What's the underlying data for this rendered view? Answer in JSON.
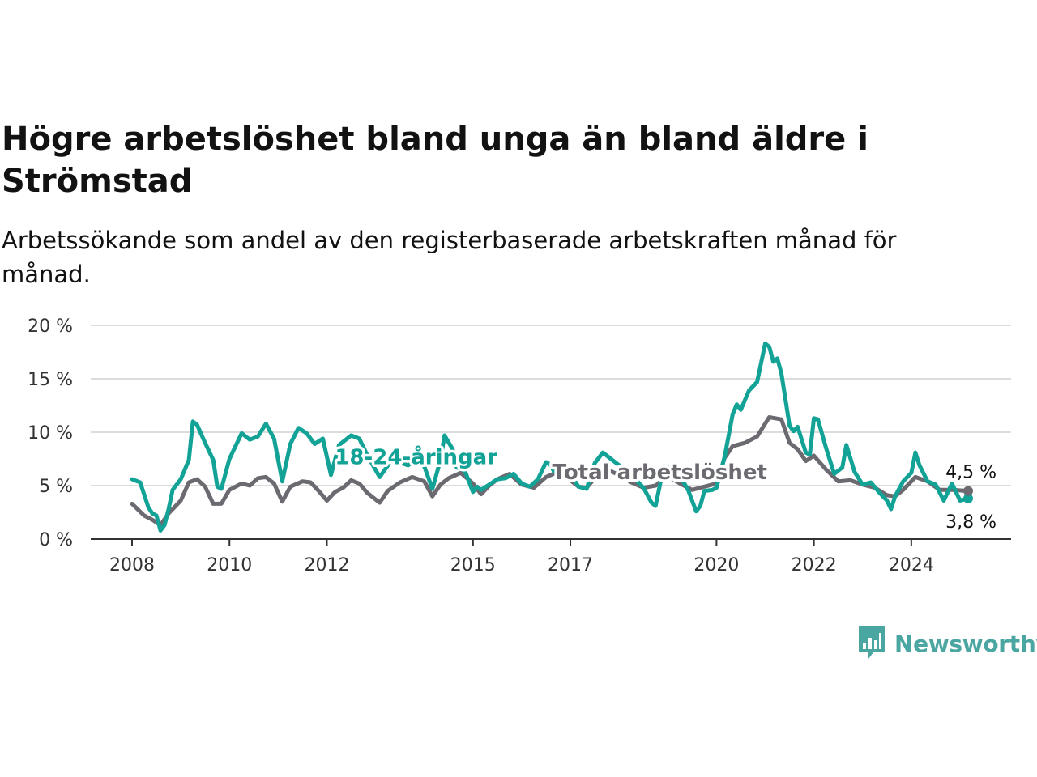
{
  "title": "Högre arbetslöshet bland unga än bland äldre i Strömstad",
  "subtitle": "Arbetssökande som andel av den registerbaserade arbetskraften månad för månad.",
  "brand": {
    "name": "Newsworthy",
    "color": "#4aa6a0"
  },
  "chart_data": {
    "type": "line",
    "title": "Högre arbetslöshet bland unga än bland äldre i Strömstad",
    "subtitle": "Arbetssökande som andel av den registerbaserade arbetskraften månad för månad.",
    "xlabel": "",
    "ylabel": "",
    "ylim": [
      0,
      20
    ],
    "xlim": [
      "2008-01",
      "2025-04"
    ],
    "grid": true,
    "y_ticks": [
      0,
      5,
      10,
      15,
      20
    ],
    "y_tick_labels": [
      "0 %",
      "5 %",
      "10 %",
      "15 %",
      "20 %"
    ],
    "x_ticks": [
      "2008-01",
      "2010-01",
      "2012-01",
      "2015-01",
      "2017-01",
      "2020-01",
      "2022-01",
      "2024-01"
    ],
    "x_tick_labels": [
      "2008",
      "2010",
      "2012",
      "2015",
      "2017",
      "2020",
      "2022",
      "2024"
    ],
    "series": [
      {
        "name": "18-24-åringar",
        "color": "#12a296",
        "label_anchor": [
          "2013-11",
          7.7
        ],
        "end_label": "3,8 %",
        "points": [
          [
            "2008-01",
            5.6
          ],
          [
            "2008-03",
            5.3
          ],
          [
            "2008-05",
            3.0
          ],
          [
            "2008-06",
            2.4
          ],
          [
            "2008-07",
            2.2
          ],
          [
            "2008-08",
            0.8
          ],
          [
            "2008-09",
            1.3
          ],
          [
            "2008-10",
            2.8
          ],
          [
            "2008-11",
            4.6
          ],
          [
            "2009-01",
            5.6
          ],
          [
            "2009-03",
            7.4
          ],
          [
            "2009-04",
            11.0
          ],
          [
            "2009-05",
            10.7
          ],
          [
            "2009-07",
            9.0
          ],
          [
            "2009-09",
            7.4
          ],
          [
            "2009-10",
            4.9
          ],
          [
            "2009-11",
            4.7
          ],
          [
            "2010-01",
            7.5
          ],
          [
            "2010-04",
            9.9
          ],
          [
            "2010-06",
            9.3
          ],
          [
            "2010-08",
            9.6
          ],
          [
            "2010-10",
            10.8
          ],
          [
            "2010-12",
            9.4
          ],
          [
            "2011-02",
            5.4
          ],
          [
            "2011-04",
            8.9
          ],
          [
            "2011-06",
            10.4
          ],
          [
            "2011-08",
            9.9
          ],
          [
            "2011-10",
            8.9
          ],
          [
            "2011-12",
            9.4
          ],
          [
            "2012-02",
            6.0
          ],
          [
            "2012-04",
            8.8
          ],
          [
            "2012-07",
            9.7
          ],
          [
            "2012-09",
            9.4
          ],
          [
            "2012-11",
            7.8
          ],
          [
            "2013-02",
            5.8
          ],
          [
            "2013-05",
            7.4
          ],
          [
            "2013-09",
            6.9
          ],
          [
            "2013-12",
            7.8
          ],
          [
            "2014-01",
            6.8
          ],
          [
            "2014-03",
            4.7
          ],
          [
            "2014-05",
            7.4
          ],
          [
            "2014-06",
            9.7
          ],
          [
            "2014-08",
            8.4
          ],
          [
            "2014-09",
            6.7
          ],
          [
            "2014-11",
            6.4
          ],
          [
            "2015-01",
            4.4
          ],
          [
            "2015-02",
            4.9
          ],
          [
            "2015-03",
            4.6
          ],
          [
            "2015-05",
            5.1
          ],
          [
            "2015-07",
            5.6
          ],
          [
            "2015-09",
            5.7
          ],
          [
            "2015-11",
            6.1
          ],
          [
            "2016-01",
            5.2
          ],
          [
            "2016-03",
            4.9
          ],
          [
            "2016-05",
            5.6
          ],
          [
            "2016-07",
            7.2
          ],
          [
            "2016-08",
            7.0
          ],
          [
            "2016-09",
            6.3
          ],
          [
            "2016-11",
            6.3
          ],
          [
            "2017-01",
            6.1
          ],
          [
            "2017-03",
            4.9
          ],
          [
            "2017-05",
            4.7
          ],
          [
            "2017-07",
            7.1
          ],
          [
            "2017-09",
            8.1
          ],
          [
            "2017-11",
            7.5
          ],
          [
            "2018-01",
            6.9
          ],
          [
            "2018-03",
            6.2
          ],
          [
            "2018-05",
            5.6
          ],
          [
            "2018-07",
            4.8
          ],
          [
            "2018-09",
            3.4
          ],
          [
            "2018-10",
            3.1
          ],
          [
            "2018-12",
            6.8
          ],
          [
            "2019-02",
            6.6
          ],
          [
            "2019-04",
            5.9
          ],
          [
            "2019-06",
            4.6
          ],
          [
            "2019-08",
            2.6
          ],
          [
            "2019-09",
            3.1
          ],
          [
            "2019-10",
            4.5
          ],
          [
            "2019-12",
            4.6
          ],
          [
            "2020-01",
            4.8
          ],
          [
            "2020-03",
            7.7
          ],
          [
            "2020-05",
            11.7
          ],
          [
            "2020-06",
            12.6
          ],
          [
            "2020-07",
            12.1
          ],
          [
            "2020-09",
            13.9
          ],
          [
            "2020-11",
            14.7
          ],
          [
            "2021-01",
            18.3
          ],
          [
            "2021-02",
            18.0
          ],
          [
            "2021-03",
            16.6
          ],
          [
            "2021-04",
            16.9
          ],
          [
            "2021-05",
            15.5
          ],
          [
            "2021-07",
            10.6
          ],
          [
            "2021-08",
            10.1
          ],
          [
            "2021-09",
            10.5
          ],
          [
            "2021-11",
            8.1
          ],
          [
            "2021-12",
            7.9
          ],
          [
            "2022-01",
            11.3
          ],
          [
            "2022-02",
            11.2
          ],
          [
            "2022-04",
            8.5
          ],
          [
            "2022-06",
            6.1
          ],
          [
            "2022-08",
            6.7
          ],
          [
            "2022-09",
            8.8
          ],
          [
            "2022-11",
            6.3
          ],
          [
            "2023-01",
            5.1
          ],
          [
            "2023-03",
            5.3
          ],
          [
            "2023-05",
            4.4
          ],
          [
            "2023-07",
            3.6
          ],
          [
            "2023-08",
            2.8
          ],
          [
            "2023-09",
            4.0
          ],
          [
            "2023-11",
            5.4
          ],
          [
            "2024-01",
            6.2
          ],
          [
            "2024-02",
            8.1
          ],
          [
            "2024-03",
            6.9
          ],
          [
            "2024-05",
            5.4
          ],
          [
            "2024-07",
            5.1
          ],
          [
            "2024-09",
            3.6
          ],
          [
            "2024-11",
            5.2
          ],
          [
            "2025-01",
            3.6
          ],
          [
            "2025-03",
            3.8
          ]
        ]
      },
      {
        "name": "Total arbetslöshet",
        "color": "#6c6a70",
        "label_anchor": [
          "2018-11",
          6.3
        ],
        "end_label": "4,5 %",
        "points": [
          [
            "2008-01",
            3.3
          ],
          [
            "2008-04",
            2.2
          ],
          [
            "2008-06",
            1.8
          ],
          [
            "2008-08",
            1.3
          ],
          [
            "2008-10",
            2.4
          ],
          [
            "2009-01",
            3.6
          ],
          [
            "2009-03",
            5.3
          ],
          [
            "2009-05",
            5.6
          ],
          [
            "2009-07",
            4.9
          ],
          [
            "2009-09",
            3.3
          ],
          [
            "2009-11",
            3.3
          ],
          [
            "2010-01",
            4.6
          ],
          [
            "2010-04",
            5.2
          ],
          [
            "2010-06",
            5.0
          ],
          [
            "2010-08",
            5.7
          ],
          [
            "2010-10",
            5.8
          ],
          [
            "2010-12",
            5.2
          ],
          [
            "2011-02",
            3.5
          ],
          [
            "2011-04",
            4.9
          ],
          [
            "2011-07",
            5.4
          ],
          [
            "2011-09",
            5.3
          ],
          [
            "2011-11",
            4.5
          ],
          [
            "2012-01",
            3.6
          ],
          [
            "2012-03",
            4.4
          ],
          [
            "2012-05",
            4.8
          ],
          [
            "2012-07",
            5.5
          ],
          [
            "2012-09",
            5.2
          ],
          [
            "2012-11",
            4.3
          ],
          [
            "2013-02",
            3.4
          ],
          [
            "2013-04",
            4.5
          ],
          [
            "2013-07",
            5.3
          ],
          [
            "2013-10",
            5.8
          ],
          [
            "2014-01",
            5.4
          ],
          [
            "2014-03",
            4.0
          ],
          [
            "2014-05",
            5.1
          ],
          [
            "2014-07",
            5.7
          ],
          [
            "2014-10",
            6.2
          ],
          [
            "2015-01",
            5.2
          ],
          [
            "2015-03",
            4.2
          ],
          [
            "2015-05",
            5.0
          ],
          [
            "2015-07",
            5.6
          ],
          [
            "2015-10",
            6.1
          ],
          [
            "2016-01",
            5.1
          ],
          [
            "2016-04",
            4.8
          ],
          [
            "2016-07",
            5.8
          ],
          [
            "2016-10",
            6.3
          ],
          [
            "2017-01",
            5.5
          ],
          [
            "2017-03",
            4.9
          ],
          [
            "2017-05",
            4.8
          ],
          [
            "2017-07",
            5.7
          ],
          [
            "2017-10",
            6.5
          ],
          [
            "2018-01",
            6.0
          ],
          [
            "2018-04",
            5.3
          ],
          [
            "2018-07",
            4.8
          ],
          [
            "2018-10",
            5.0
          ],
          [
            "2019-01",
            5.9
          ],
          [
            "2019-04",
            5.2
          ],
          [
            "2019-07",
            4.6
          ],
          [
            "2019-10",
            4.9
          ],
          [
            "2020-01",
            5.2
          ],
          [
            "2020-03",
            7.6
          ],
          [
            "2020-05",
            8.7
          ],
          [
            "2020-08",
            9.0
          ],
          [
            "2020-11",
            9.6
          ],
          [
            "2021-02",
            11.4
          ],
          [
            "2021-05",
            11.2
          ],
          [
            "2021-07",
            9.0
          ],
          [
            "2021-09",
            8.4
          ],
          [
            "2021-11",
            7.3
          ],
          [
            "2022-01",
            7.8
          ],
          [
            "2022-04",
            6.5
          ],
          [
            "2022-07",
            5.4
          ],
          [
            "2022-10",
            5.5
          ],
          [
            "2023-01",
            5.1
          ],
          [
            "2023-04",
            4.8
          ],
          [
            "2023-07",
            4.1
          ],
          [
            "2023-09",
            4.0
          ],
          [
            "2023-11",
            4.6
          ],
          [
            "2024-02",
            5.8
          ],
          [
            "2024-05",
            5.4
          ],
          [
            "2024-08",
            4.6
          ],
          [
            "2024-11",
            4.6
          ],
          [
            "2025-03",
            4.5
          ]
        ]
      }
    ]
  }
}
